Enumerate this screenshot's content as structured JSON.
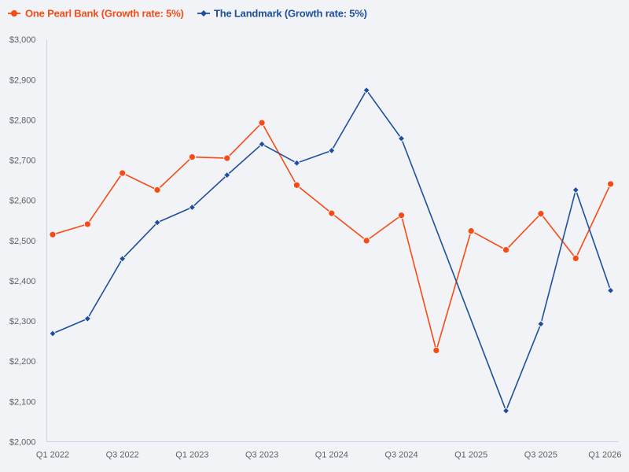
{
  "chart_data": {
    "type": "line",
    "title": "",
    "categories": [
      "Q1 2022",
      "Q2 2022",
      "Q3 2022",
      "Q4 2022",
      "Q1 2023",
      "Q2 2023",
      "Q3 2023",
      "Q4 2023",
      "Q1 2024",
      "Q2 2024",
      "Q3 2024",
      "Q4 2024",
      "Q1 2025",
      "Q2 2025",
      "Q3 2025",
      "Q4 2025",
      "Q1 2026"
    ],
    "x_tick_labels_shown": [
      "Q1 2022",
      "Q3 2022",
      "Q1 2023",
      "Q3 2023",
      "Q1 2024",
      "Q3 2024",
      "Q1 2025",
      "Q3 2025",
      "Q1 2026"
    ],
    "y_tick_labels": [
      "$2,000",
      "$2,100",
      "$2,200",
      "$2,300",
      "$2,400",
      "$2,500",
      "$2,600",
      "$2,700",
      "$2,800",
      "$2,900",
      "$3,000"
    ],
    "ylim": [
      2000,
      3000
    ],
    "y_tick_step": 100,
    "grid": "off",
    "legend_position": "top-left",
    "series": [
      {
        "name": "One Pearl Bank (Growth rate: 5%)",
        "color": "#f74b16",
        "marker": "circle",
        "values": [
          2515,
          2541,
          2668,
          2626,
          2708,
          2705,
          2793,
          2638,
          2568,
          2500,
          2563,
          2227,
          2524,
          2477,
          2567,
          2456,
          2641
        ]
      },
      {
        "name": "The Landmark (Growth rate: 5%)",
        "color": "#1d4f9e",
        "marker": "diamond",
        "values": [
          2269,
          2306,
          2455,
          2545,
          2583,
          2663,
          2740,
          2693,
          2724,
          2874,
          2754,
          null,
          null,
          2077,
          2293,
          2626,
          2376
        ]
      }
    ]
  },
  "legend": {
    "items": [
      {
        "label": "One Pearl Bank (Growth rate: 5%)",
        "color": "#f74b16",
        "marker": "circle"
      },
      {
        "label": "The Landmark (Growth rate: 5%)",
        "color": "#1d4f9e",
        "marker": "diamond"
      }
    ]
  },
  "colors": {
    "background": "#f2f3f6",
    "axis_line": "#c9d3e8",
    "axis_text": "#5d6066"
  }
}
